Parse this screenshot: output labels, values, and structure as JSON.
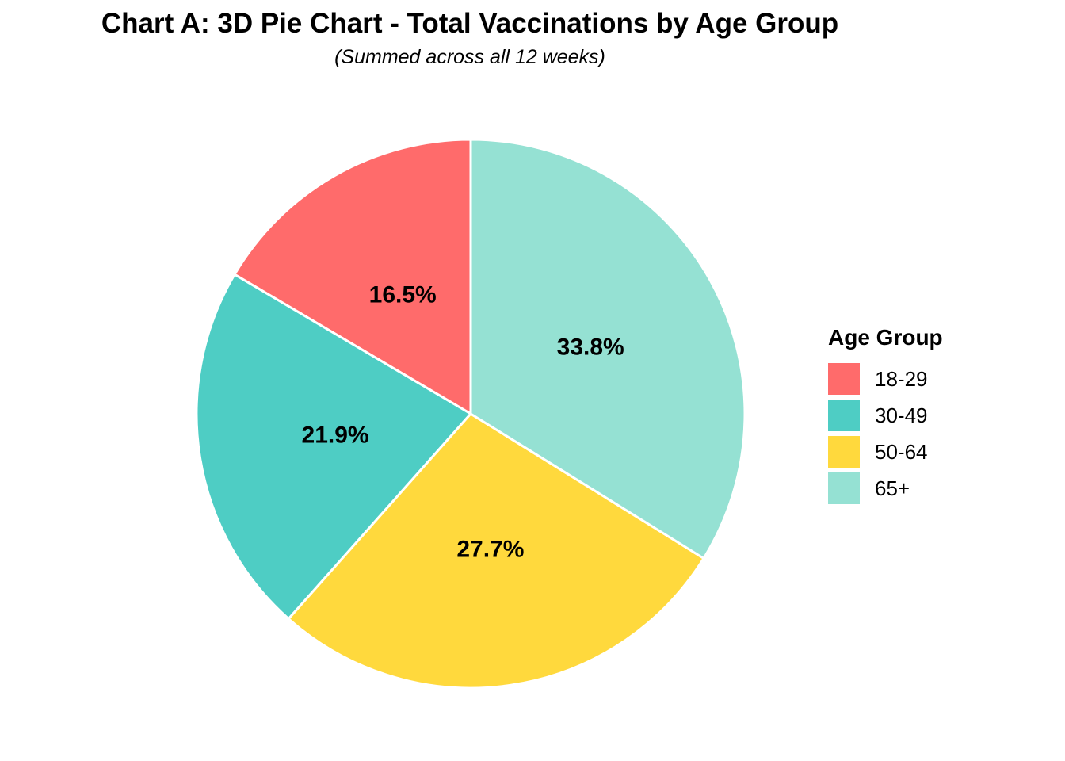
{
  "header": {
    "title": "Chart A: 3D Pie Chart - Total Vaccinations by Age Group",
    "subtitle": "(Summed across all 12 weeks)"
  },
  "chart_data": {
    "type": "pie",
    "title": "Chart A: 3D Pie Chart - Total Vaccinations by Age Group",
    "subtitle": "(Summed across all 12 weeks)",
    "categories": [
      "18-29",
      "30-49",
      "50-64",
      "65+"
    ],
    "values_percent": [
      16.5,
      21.9,
      27.7,
      33.8
    ],
    "slice_labels": [
      "16.5%",
      "21.9%",
      "27.7%",
      "33.8%"
    ],
    "colors": [
      "#FF6B6B",
      "#4ECDC4",
      "#FFD93D",
      "#95E1D3"
    ],
    "start_position": "12-o-clock",
    "direction": "counterclockwise",
    "slice_border_color": "#FFFFFF",
    "label_color": "#000000",
    "legend_title": "Age Group",
    "legend_position": "right",
    "background": "#FFFFFF"
  },
  "legend": {
    "title": "Age Group",
    "items": [
      {
        "label": "18-29",
        "color": "#FF6B6B"
      },
      {
        "label": "30-49",
        "color": "#4ECDC4"
      },
      {
        "label": "50-64",
        "color": "#FFD93D"
      },
      {
        "label": "65+",
        "color": "#95E1D3"
      }
    ]
  }
}
